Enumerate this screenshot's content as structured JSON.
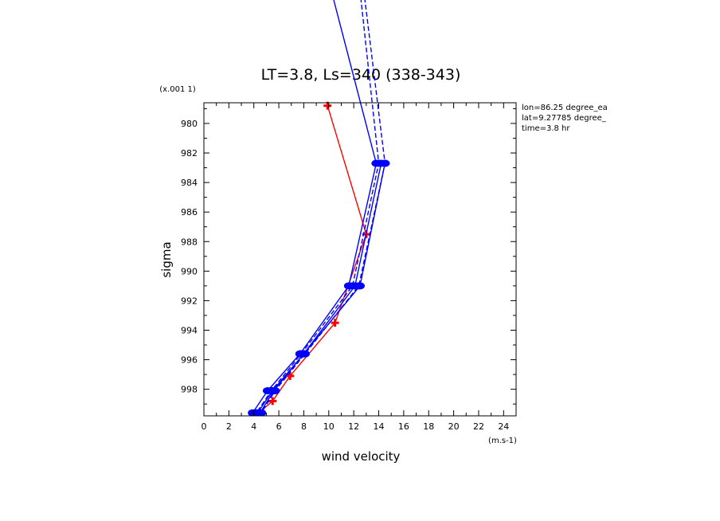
{
  "chart_data": {
    "type": "line",
    "title": "LT=3.8, Ls=340 (338-343)",
    "xlabel": "wind velocity",
    "ylabel": "sigma",
    "x_units": "(m.s-1)",
    "y_scale_note": "(x.001 1)",
    "xlim": [
      0,
      25
    ],
    "ylim": [
      999.8,
      978.6
    ],
    "y_inverted": true,
    "xticks": [
      0,
      2,
      4,
      6,
      8,
      10,
      12,
      14,
      16,
      18,
      20,
      22,
      24
    ],
    "yticks": [
      980,
      982,
      984,
      986,
      988,
      990,
      992,
      994,
      996,
      998
    ],
    "info": [
      "lon=86.25 degree_ea",
      "lat=9.27785 degree_",
      "time=3.8 hr"
    ],
    "colors": {
      "observed": "#ff0000",
      "model": "#0000ff"
    },
    "series": [
      {
        "color": "#ff0000",
        "style": "solid",
        "marker": "plus",
        "points": [
          [
            9.9,
            978.8
          ],
          [
            13.0,
            987.5
          ],
          [
            10.5,
            993.5
          ],
          [
            6.9,
            997.1
          ],
          [
            5.5,
            998.8
          ],
          [
            4.1,
            999.8
          ]
        ]
      },
      {
        "color": "#0000ff",
        "style": "solid",
        "marker": "circle",
        "points": [
          [
            10.2,
            971.0
          ],
          [
            13.8,
            982.7
          ],
          [
            11.6,
            991.0
          ],
          [
            7.7,
            995.6
          ],
          [
            5.1,
            998.1
          ],
          [
            3.9,
            999.6
          ]
        ]
      },
      {
        "color": "#0000ff",
        "style": "solid",
        "marker": "circle",
        "points": [
          [
            14.2,
            982.7
          ],
          [
            12.1,
            991.0
          ],
          [
            8.0,
            995.6
          ],
          [
            5.5,
            998.1
          ],
          [
            4.3,
            999.6
          ]
        ]
      },
      {
        "color": "#0000ff",
        "style": "solid",
        "marker": "circle",
        "points": [
          [
            14.5,
            982.7
          ],
          [
            12.5,
            991.0
          ],
          [
            8.0,
            995.6
          ],
          [
            5.6,
            998.1
          ],
          [
            4.5,
            999.6
          ]
        ]
      },
      {
        "color": "#0000ff",
        "style": "dashed",
        "marker": "circle",
        "points": [
          [
            12.5,
            971.0
          ],
          [
            14.0,
            982.7
          ],
          [
            11.9,
            991.0
          ],
          [
            7.8,
            995.6
          ],
          [
            5.4,
            998.1
          ],
          [
            4.2,
            999.6
          ]
        ]
      },
      {
        "color": "#0000ff",
        "style": "dashed",
        "marker": "circle",
        "points": [
          [
            12.8,
            971.0
          ],
          [
            14.5,
            982.7
          ],
          [
            12.4,
            991.0
          ],
          [
            8.1,
            995.6
          ],
          [
            5.7,
            998.1
          ],
          [
            4.6,
            999.6
          ]
        ]
      }
    ]
  }
}
